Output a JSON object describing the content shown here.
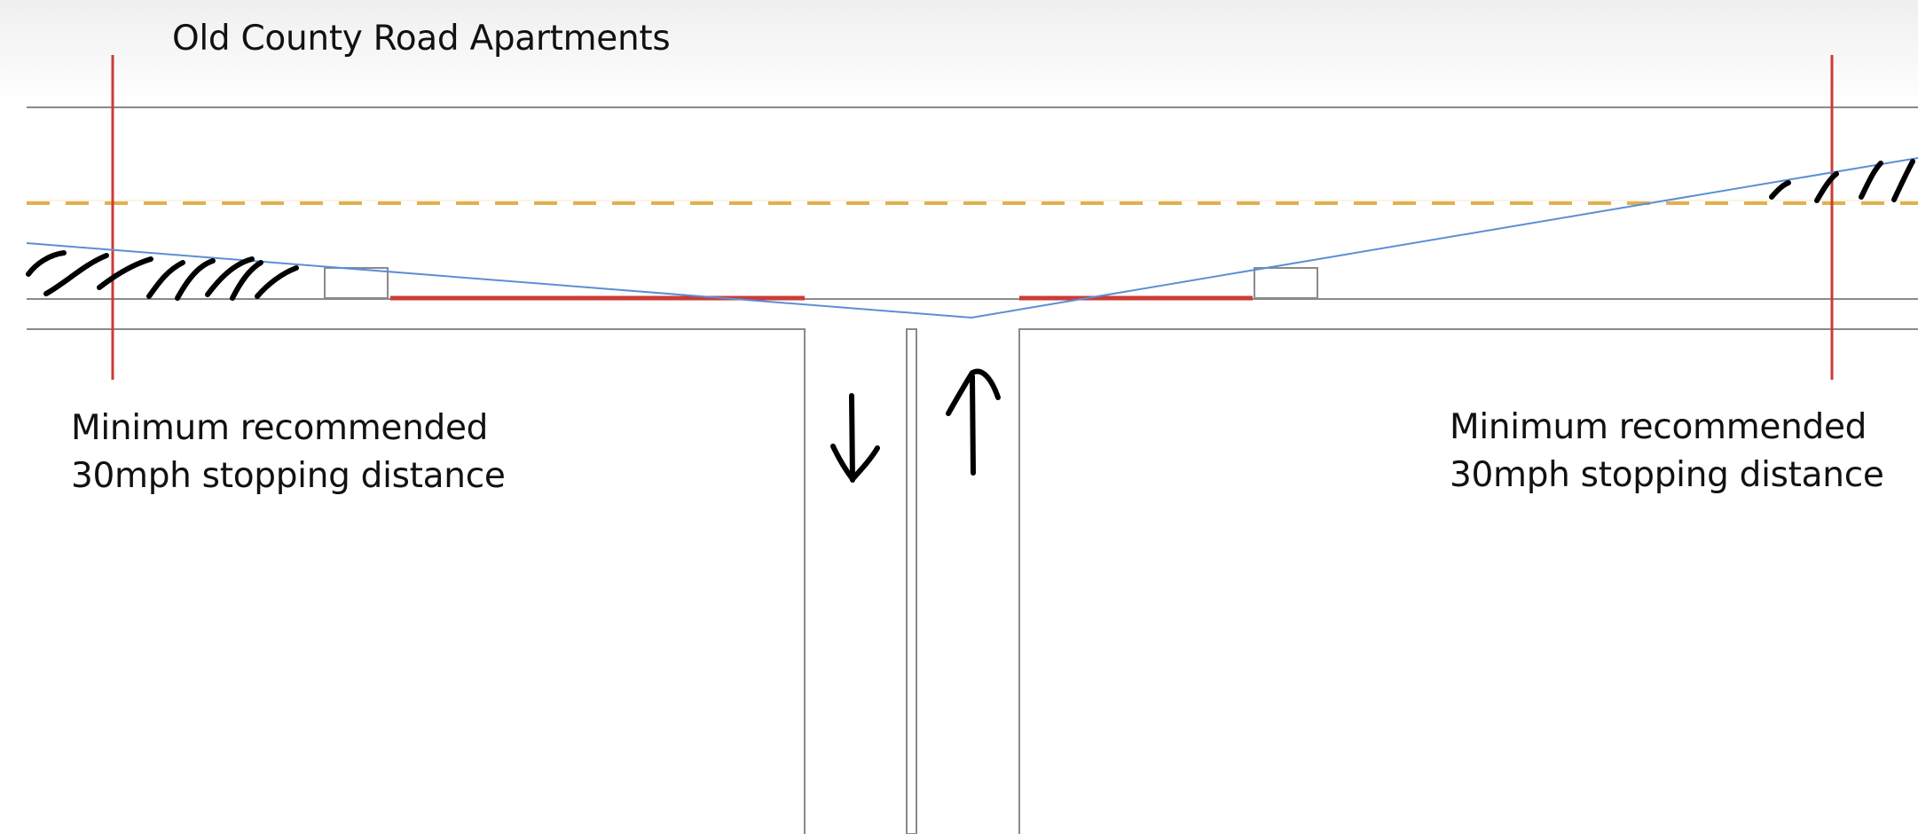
{
  "diagram": {
    "title": "Old County Road Apartments",
    "left_note": {
      "line1": "Minimum recommended",
      "line2": "30mph stopping distance"
    },
    "right_note": {
      "line1": "Minimum recommended",
      "line2": "30mph stopping distance"
    },
    "colors": {
      "background": "#ffffff",
      "header_band": "#f5f5f5",
      "road_edge": "#8a8a8a",
      "center_line": "#e0b050",
      "stopping_marker": "#cc3b36",
      "sight_line": "#5b8fd6",
      "ink": "#000000"
    },
    "icons": {
      "down_arrow": "arrow-down",
      "up_arrow": "arrow-up"
    }
  }
}
